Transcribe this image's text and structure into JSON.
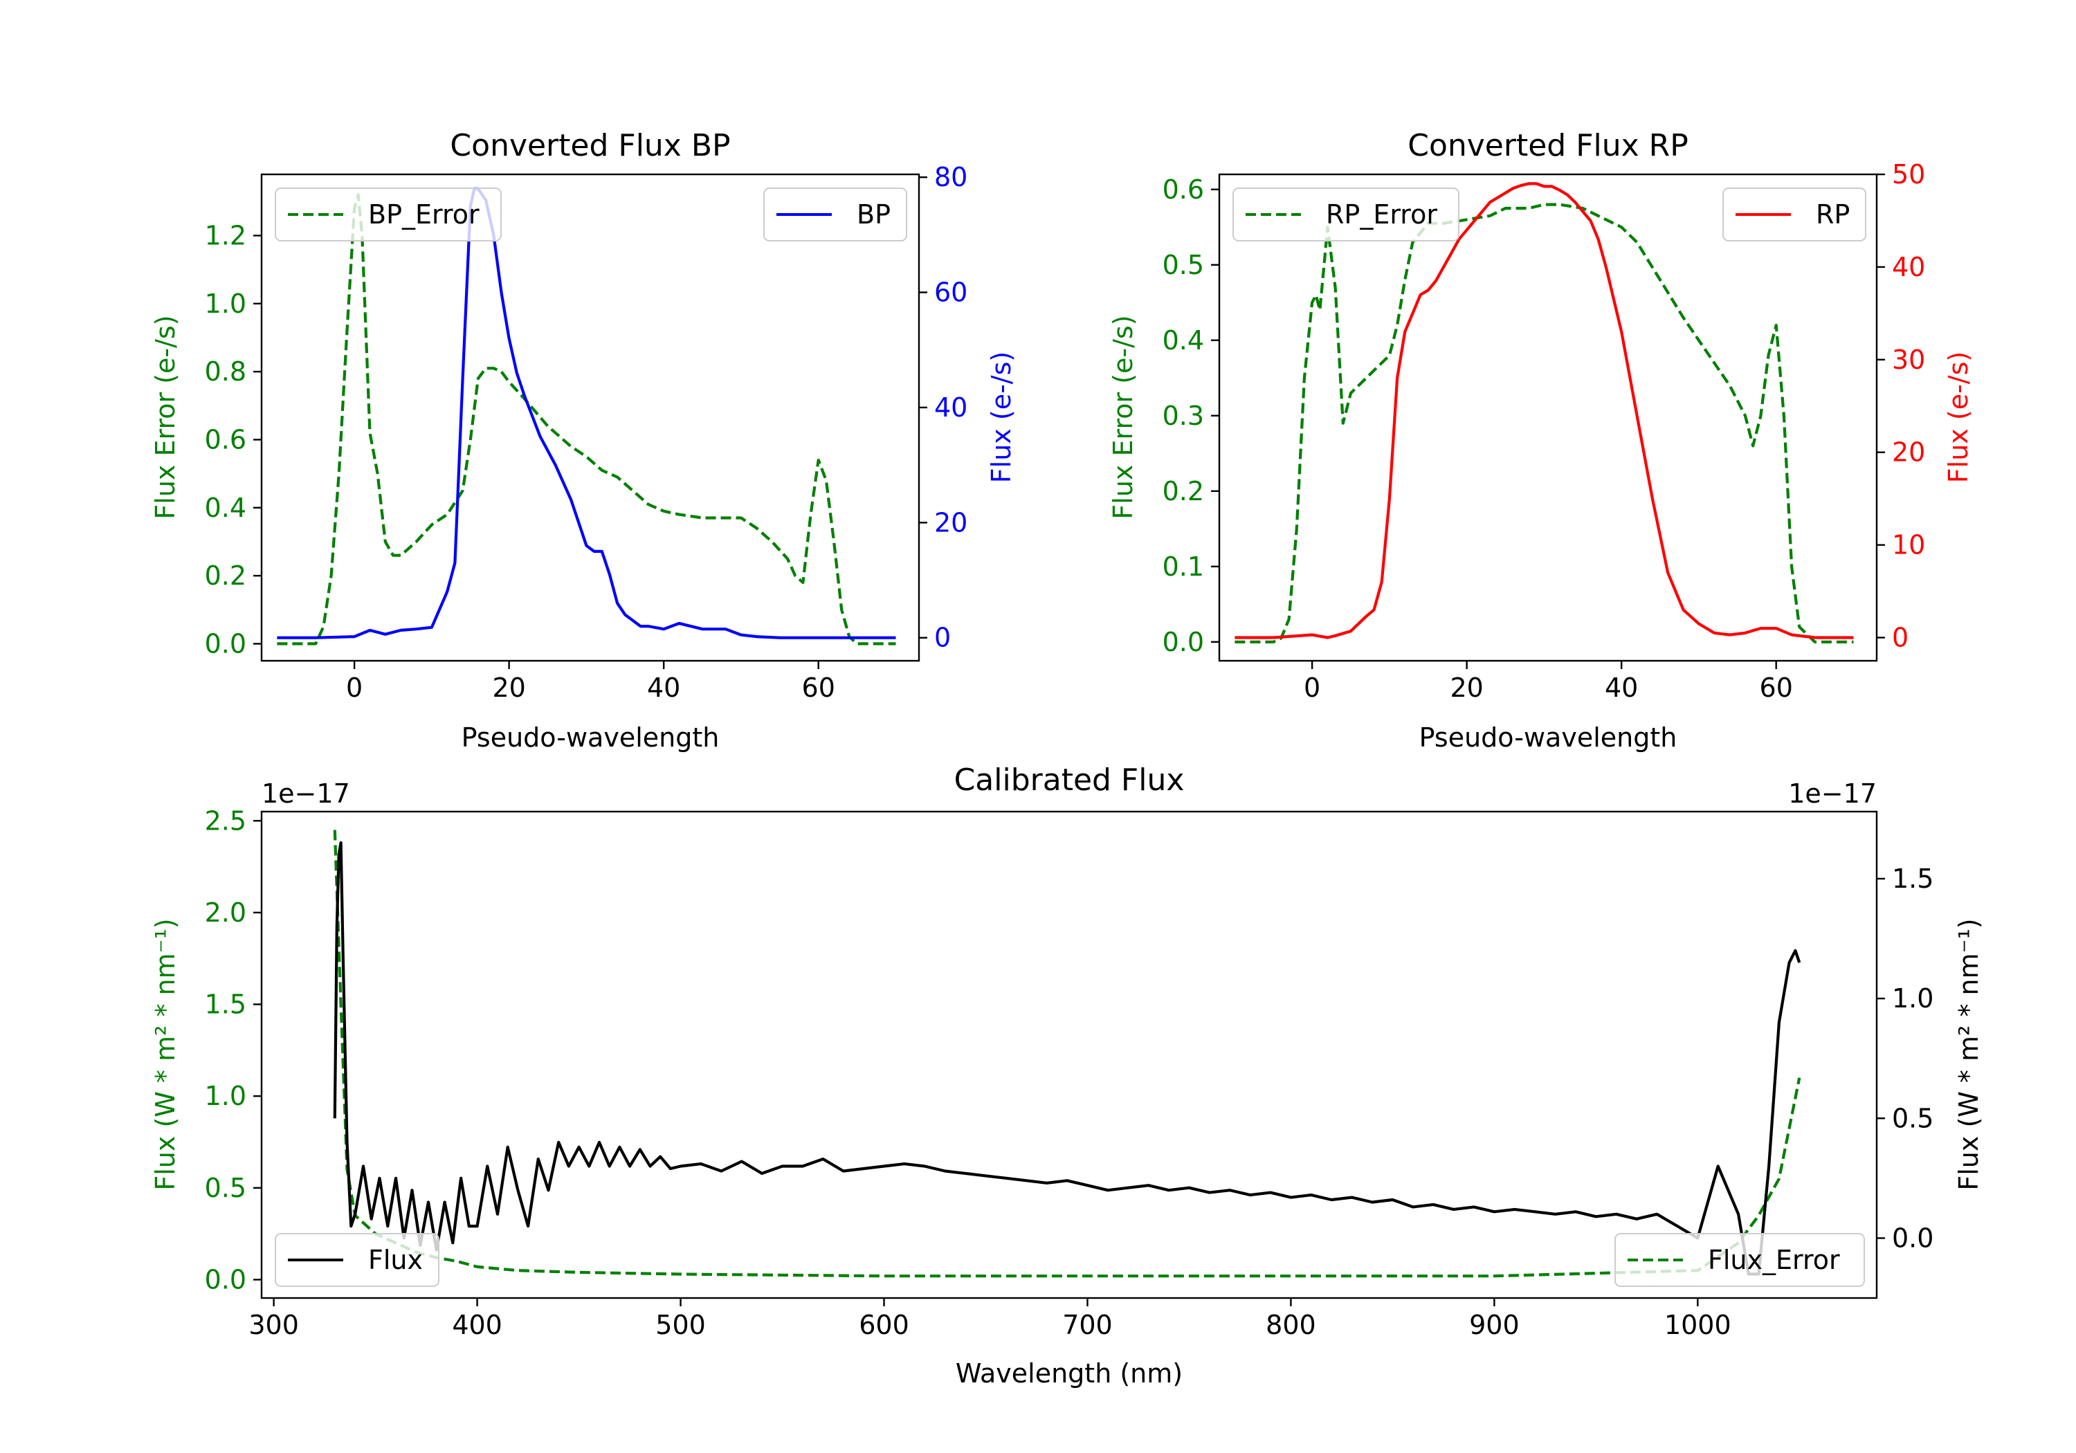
{
  "colors": {
    "error": "#008000",
    "bp": "#0000ff",
    "rp": "#ff0000",
    "flux": "#000000",
    "axis": "#000000"
  },
  "chart_data": [
    {
      "id": "bp",
      "type": "line",
      "title": "Converted Flux BP",
      "xlabel": "Pseudo-wavelength",
      "xlim": [
        -12,
        73
      ],
      "xticks": [
        0,
        20,
        40,
        60
      ],
      "left_axis": {
        "label": "Flux Error (e-/s)",
        "ylim": [
          -0.05,
          1.38
        ],
        "ticks": [
          "0.0",
          "0.2",
          "0.4",
          "0.6",
          "0.8",
          "1.0",
          "1.2"
        ],
        "tick_values": [
          0,
          0.2,
          0.4,
          0.6,
          0.8,
          1.0,
          1.2
        ]
      },
      "right_axis": {
        "label": "Flux (e-/s)",
        "ylim": [
          -4,
          80.5
        ],
        "ticks": [
          "0",
          "20",
          "40",
          "60",
          "80"
        ],
        "tick_values": [
          0,
          20,
          40,
          60,
          80
        ]
      },
      "series": [
        {
          "name": "BP_Error",
          "axis": "left",
          "style": "dashed",
          "color_key": "error",
          "x": [
            -10,
            -5,
            -4,
            -3,
            -2,
            -1,
            0,
            0.5,
            1,
            2,
            3,
            4,
            5,
            6,
            7,
            8,
            10,
            12,
            14,
            15,
            16,
            17,
            18,
            19,
            20,
            22,
            25,
            28,
            30,
            32,
            34,
            36,
            38,
            40,
            42,
            45,
            48,
            50,
            52,
            54,
            56,
            57,
            58,
            59,
            60,
            61,
            62,
            63,
            64,
            65,
            68,
            70
          ],
          "y": [
            0,
            0,
            0.05,
            0.2,
            0.5,
            0.9,
            1.28,
            1.32,
            1.2,
            0.62,
            0.5,
            0.3,
            0.26,
            0.26,
            0.28,
            0.3,
            0.35,
            0.38,
            0.45,
            0.6,
            0.78,
            0.81,
            0.81,
            0.8,
            0.77,
            0.72,
            0.64,
            0.58,
            0.55,
            0.51,
            0.49,
            0.45,
            0.41,
            0.39,
            0.38,
            0.37,
            0.37,
            0.37,
            0.34,
            0.3,
            0.25,
            0.2,
            0.18,
            0.38,
            0.54,
            0.48,
            0.3,
            0.1,
            0.02,
            0,
            0,
            0
          ]
        },
        {
          "name": "BP",
          "axis": "right",
          "style": "solid",
          "color_key": "bp",
          "x": [
            -10,
            -5,
            0,
            2,
            4,
            6,
            8,
            10,
            12,
            13,
            14,
            15,
            15.5,
            16,
            17,
            18,
            19,
            20,
            21,
            22,
            24,
            26,
            28,
            30,
            31,
            32,
            33,
            34,
            35,
            36,
            37,
            38,
            40,
            42,
            45,
            48,
            50,
            52,
            55,
            60,
            65,
            70
          ],
          "y": [
            0,
            0,
            0.2,
            1.3,
            0.6,
            1.3,
            1.5,
            1.8,
            8,
            13,
            45,
            75,
            78,
            78,
            76,
            70,
            60,
            52,
            46,
            42,
            35,
            30,
            24,
            16,
            15,
            15,
            11,
            6,
            4,
            3,
            2,
            2,
            1.5,
            2.5,
            1.5,
            1.5,
            0.5,
            0.2,
            0,
            0,
            0,
            0
          ]
        }
      ],
      "legend_left": "BP_Error",
      "legend_right": "BP"
    },
    {
      "id": "rp",
      "type": "line",
      "title": "Converted Flux RP",
      "xlabel": "Pseudo-wavelength",
      "xlim": [
        -12,
        73
      ],
      "xticks": [
        0,
        20,
        40,
        60
      ],
      "left_axis": {
        "label": "Flux Error (e-/s)",
        "ylim": [
          -0.025,
          0.62
        ],
        "ticks": [
          "0.0",
          "0.1",
          "0.2",
          "0.3",
          "0.4",
          "0.5",
          "0.6"
        ],
        "tick_values": [
          0,
          0.1,
          0.2,
          0.3,
          0.4,
          0.5,
          0.6
        ]
      },
      "right_axis": {
        "label": "Flux (e-/s)",
        "ylim": [
          -2.5,
          50
        ],
        "ticks": [
          "0",
          "10",
          "20",
          "30",
          "40",
          "50"
        ],
        "tick_values": [
          0,
          10,
          20,
          30,
          40,
          50
        ]
      },
      "series": [
        {
          "name": "RP_Error",
          "axis": "left",
          "style": "dashed",
          "color_key": "error",
          "x": [
            -10,
            -5,
            -4,
            -3,
            -2,
            -1,
            0,
            0.5,
            1,
            2,
            3,
            4,
            5,
            6,
            7,
            8,
            9,
            10,
            11,
            12,
            13,
            15,
            17,
            20,
            23,
            25,
            28,
            30,
            32,
            35,
            38,
            40,
            42,
            45,
            48,
            50,
            52,
            54,
            56,
            57,
            58,
            59,
            60,
            61,
            62,
            63,
            65,
            70
          ],
          "y": [
            0,
            0,
            0.005,
            0.03,
            0.15,
            0.35,
            0.45,
            0.46,
            0.44,
            0.55,
            0.47,
            0.29,
            0.33,
            0.34,
            0.35,
            0.36,
            0.37,
            0.38,
            0.42,
            0.48,
            0.53,
            0.555,
            0.555,
            0.56,
            0.565,
            0.575,
            0.575,
            0.58,
            0.58,
            0.575,
            0.56,
            0.55,
            0.53,
            0.48,
            0.43,
            0.4,
            0.37,
            0.34,
            0.3,
            0.26,
            0.3,
            0.38,
            0.42,
            0.3,
            0.1,
            0.02,
            0,
            0
          ]
        },
        {
          "name": "RP",
          "axis": "right",
          "style": "solid",
          "color_key": "rp",
          "x": [
            -10,
            -5,
            0,
            2,
            3,
            5,
            7,
            8,
            9,
            10,
            11,
            12,
            13,
            14,
            15,
            16,
            17,
            18,
            19,
            20,
            21,
            22,
            23,
            24,
            25,
            26,
            27,
            28,
            29,
            30,
            31,
            32,
            33,
            34,
            35,
            36,
            37,
            38,
            40,
            42,
            44,
            46,
            48,
            50,
            52,
            54,
            56,
            58,
            60,
            62,
            65,
            70
          ],
          "y": [
            0,
            0,
            0.3,
            0,
            0.2,
            0.7,
            2.3,
            3,
            6,
            15,
            28,
            33,
            35,
            37,
            37.5,
            38.5,
            40,
            41.5,
            43,
            44,
            45,
            46,
            47,
            47.5,
            48,
            48.5,
            48.8,
            49,
            49,
            48.7,
            48.7,
            48.3,
            47.8,
            47,
            46,
            45,
            43,
            40,
            33,
            24,
            15,
            7,
            3,
            1.5,
            0.5,
            0.3,
            0.5,
            1,
            1,
            0.3,
            0,
            0
          ]
        }
      ],
      "legend_left": "RP_Error",
      "legend_right": "RP"
    },
    {
      "id": "cal",
      "type": "line",
      "title": "Calibrated Flux",
      "xlabel": "Wavelength (nm)",
      "xlim": [
        294,
        1088
      ],
      "xticks": [
        300,
        400,
        500,
        600,
        700,
        800,
        900,
        1000
      ],
      "left_axis": {
        "label": "Flux (W * m² * nm⁻¹)",
        "offset": "1e−17",
        "ylim": [
          -0.1,
          2.55
        ],
        "ticks": [
          "0.0",
          "0.5",
          "1.0",
          "1.5",
          "2.0",
          "2.5"
        ],
        "tick_values": [
          0,
          0.5,
          1.0,
          1.5,
          2.0,
          2.5
        ]
      },
      "right_axis": {
        "label": "Flux (W * m² * nm⁻¹)",
        "offset": "1e−17",
        "ylim": [
          -0.25,
          1.78
        ],
        "ticks": [
          "0.0",
          "0.5",
          "1.0",
          "1.5"
        ],
        "tick_values": [
          0,
          0.5,
          1.0,
          1.5
        ]
      },
      "series": [
        {
          "name": "Flux_Error",
          "axis": "left",
          "style": "dashed",
          "color_key": "error",
          "x": [
            330,
            333,
            336,
            340,
            345,
            350,
            360,
            370,
            380,
            390,
            400,
            420,
            450,
            500,
            600,
            700,
            800,
            900,
            1000,
            1020,
            1030,
            1040,
            1050
          ],
          "y": [
            2.45,
            1.5,
            0.6,
            0.35,
            0.3,
            0.25,
            0.2,
            0.15,
            0.12,
            0.1,
            0.07,
            0.05,
            0.04,
            0.03,
            0.02,
            0.02,
            0.02,
            0.02,
            0.05,
            0.2,
            0.35,
            0.55,
            1.1
          ]
        },
        {
          "name": "Flux",
          "axis": "right",
          "style": "solid",
          "color_key": "flux",
          "x": [
            330,
            331,
            332,
            333,
            334,
            336,
            338,
            340,
            344,
            348,
            352,
            356,
            360,
            364,
            368,
            372,
            376,
            380,
            384,
            388,
            392,
            396,
            400,
            405,
            410,
            415,
            420,
            425,
            430,
            435,
            440,
            445,
            450,
            455,
            460,
            465,
            470,
            475,
            480,
            485,
            490,
            495,
            500,
            510,
            520,
            530,
            540,
            550,
            560,
            570,
            580,
            590,
            600,
            610,
            620,
            630,
            640,
            650,
            660,
            670,
            680,
            690,
            700,
            710,
            720,
            730,
            740,
            750,
            760,
            770,
            780,
            790,
            800,
            810,
            820,
            830,
            840,
            850,
            860,
            870,
            880,
            890,
            900,
            910,
            920,
            930,
            940,
            950,
            960,
            970,
            980,
            990,
            1000,
            1010,
            1020,
            1025,
            1030,
            1035,
            1040,
            1045,
            1048,
            1050
          ],
          "y": [
            0.5,
            1.3,
            1.6,
            1.65,
            1.2,
            0.4,
            0.05,
            0.1,
            0.3,
            0.08,
            0.25,
            0.05,
            0.25,
            0.0,
            0.2,
            -0.03,
            0.15,
            -0.05,
            0.15,
            -0.02,
            0.25,
            0.05,
            0.05,
            0.3,
            0.1,
            0.38,
            0.2,
            0.05,
            0.33,
            0.2,
            0.4,
            0.3,
            0.38,
            0.3,
            0.4,
            0.3,
            0.38,
            0.3,
            0.37,
            0.3,
            0.34,
            0.29,
            0.3,
            0.31,
            0.28,
            0.32,
            0.27,
            0.3,
            0.3,
            0.33,
            0.28,
            0.29,
            0.3,
            0.31,
            0.3,
            0.28,
            0.27,
            0.26,
            0.25,
            0.24,
            0.23,
            0.24,
            0.22,
            0.2,
            0.21,
            0.22,
            0.2,
            0.21,
            0.19,
            0.2,
            0.18,
            0.19,
            0.17,
            0.18,
            0.16,
            0.17,
            0.15,
            0.16,
            0.13,
            0.14,
            0.12,
            0.13,
            0.11,
            0.12,
            0.11,
            0.1,
            0.11,
            0.09,
            0.1,
            0.08,
            0.1,
            0.05,
            0.0,
            0.3,
            0.1,
            -0.15,
            -0.15,
            0.3,
            0.9,
            1.15,
            1.2,
            1.15
          ]
        }
      ],
      "legend_left": "Flux",
      "legend_right": "Flux_Error"
    }
  ]
}
